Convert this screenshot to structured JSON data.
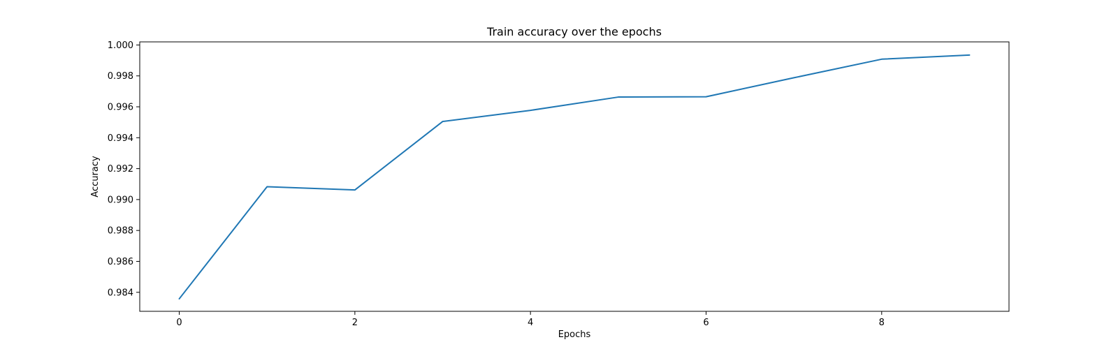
{
  "chart_data": {
    "type": "line",
    "title": "Train accuracy over the epochs",
    "xlabel": "Epochs",
    "ylabel": "Accuracy",
    "xlim": [
      -0.45,
      9.45
    ],
    "ylim": [
      0.98277,
      1.0002
    ],
    "x_ticks": [
      0,
      2,
      4,
      6,
      8
    ],
    "x_tick_labels": [
      "0",
      "2",
      "4",
      "6",
      "8"
    ],
    "y_ticks": [
      0.984,
      0.986,
      0.988,
      0.99,
      0.992,
      0.994,
      0.996,
      0.998,
      1.0
    ],
    "y_tick_labels": [
      "0.984",
      "0.986",
      "0.988",
      "0.990",
      "0.992",
      "0.994",
      "0.996",
      "0.998",
      "1.000"
    ],
    "grid": false,
    "series": [
      {
        "color": "#1f77b4",
        "x": [
          0,
          1,
          2,
          3,
          4,
          5,
          6,
          7,
          8,
          9
        ],
        "y": [
          0.98358,
          0.99083,
          0.99062,
          0.99505,
          0.99577,
          0.99663,
          0.99665,
          0.99788,
          0.99908,
          0.99935
        ]
      }
    ]
  }
}
